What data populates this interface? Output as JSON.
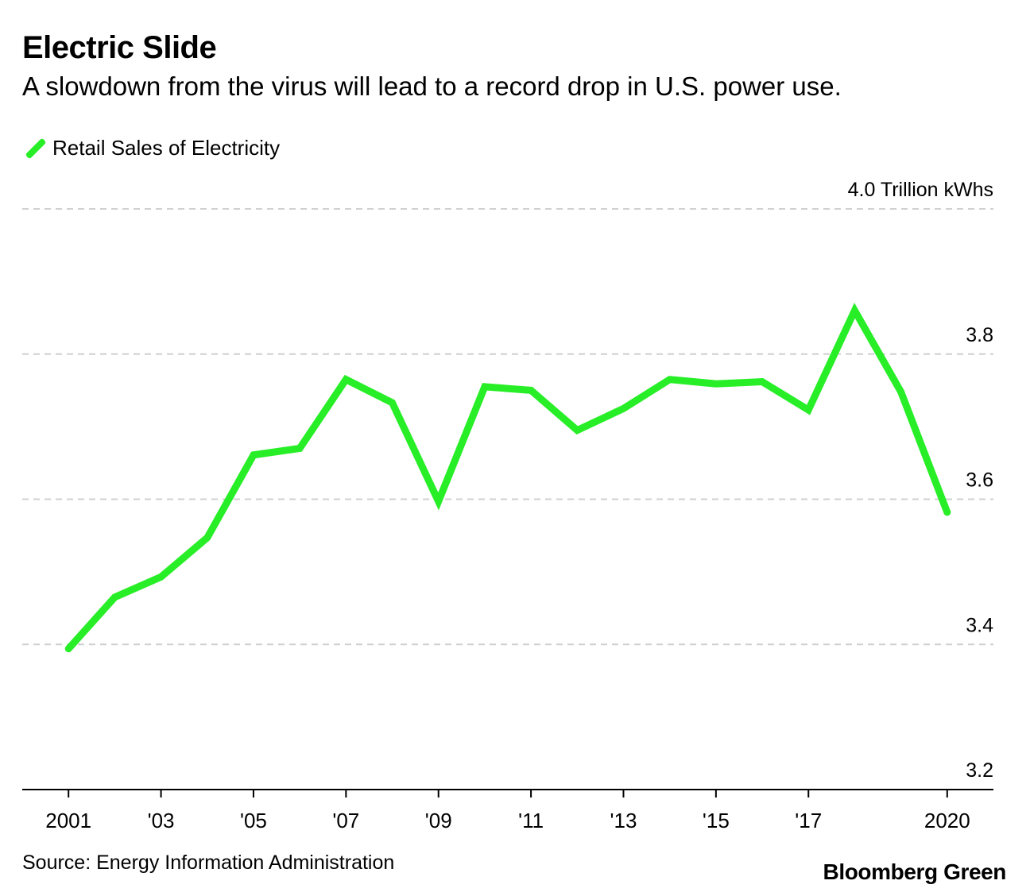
{
  "colors": {
    "series": "#27ee27",
    "gridline": "#d0d0d0",
    "axis": "#000000",
    "text": "#000000"
  },
  "chart_data": {
    "type": "line",
    "title": "Electric Slide",
    "subtitle": "A slowdown from the virus will lead to a record drop in U.S. power use.",
    "legend": [
      "Retail Sales of Electricity"
    ],
    "legend_position": "top-left",
    "xlabel": "",
    "ylabel": "Trillion kWhs",
    "y_unit_label": "4.0 Trillion kWhs",
    "ylim": [
      3.2,
      4.0
    ],
    "yticks": [
      3.2,
      3.4,
      3.6,
      3.8,
      4.0
    ],
    "ytick_labels": [
      "3.2",
      "3.4",
      "3.6",
      "3.8",
      "4.0 Trillion kWhs"
    ],
    "xlim": [
      2000,
      2021
    ],
    "xticks": [
      2001,
      2003,
      2005,
      2007,
      2009,
      2011,
      2013,
      2015,
      2017,
      2020
    ],
    "xtick_labels": [
      "2001",
      "'03",
      "'05",
      "'07",
      "'09",
      "'11",
      "'13",
      "'15",
      "'17",
      "2020"
    ],
    "grid": true,
    "series": [
      {
        "name": "Retail Sales of Electricity",
        "x": [
          2001,
          2002,
          2003,
          2004,
          2005,
          2006,
          2007,
          2008,
          2009,
          2010,
          2011,
          2012,
          2013,
          2014,
          2015,
          2016,
          2017,
          2018,
          2019,
          2020
        ],
        "values": [
          3.394,
          3.465,
          3.493,
          3.547,
          3.661,
          3.67,
          3.765,
          3.733,
          3.597,
          3.755,
          3.75,
          3.695,
          3.725,
          3.765,
          3.759,
          3.762,
          3.723,
          3.86,
          3.748,
          3.582
        ]
      }
    ]
  },
  "footer": {
    "source": "Source: Energy Information Administration",
    "brand": "Bloomberg Green"
  }
}
